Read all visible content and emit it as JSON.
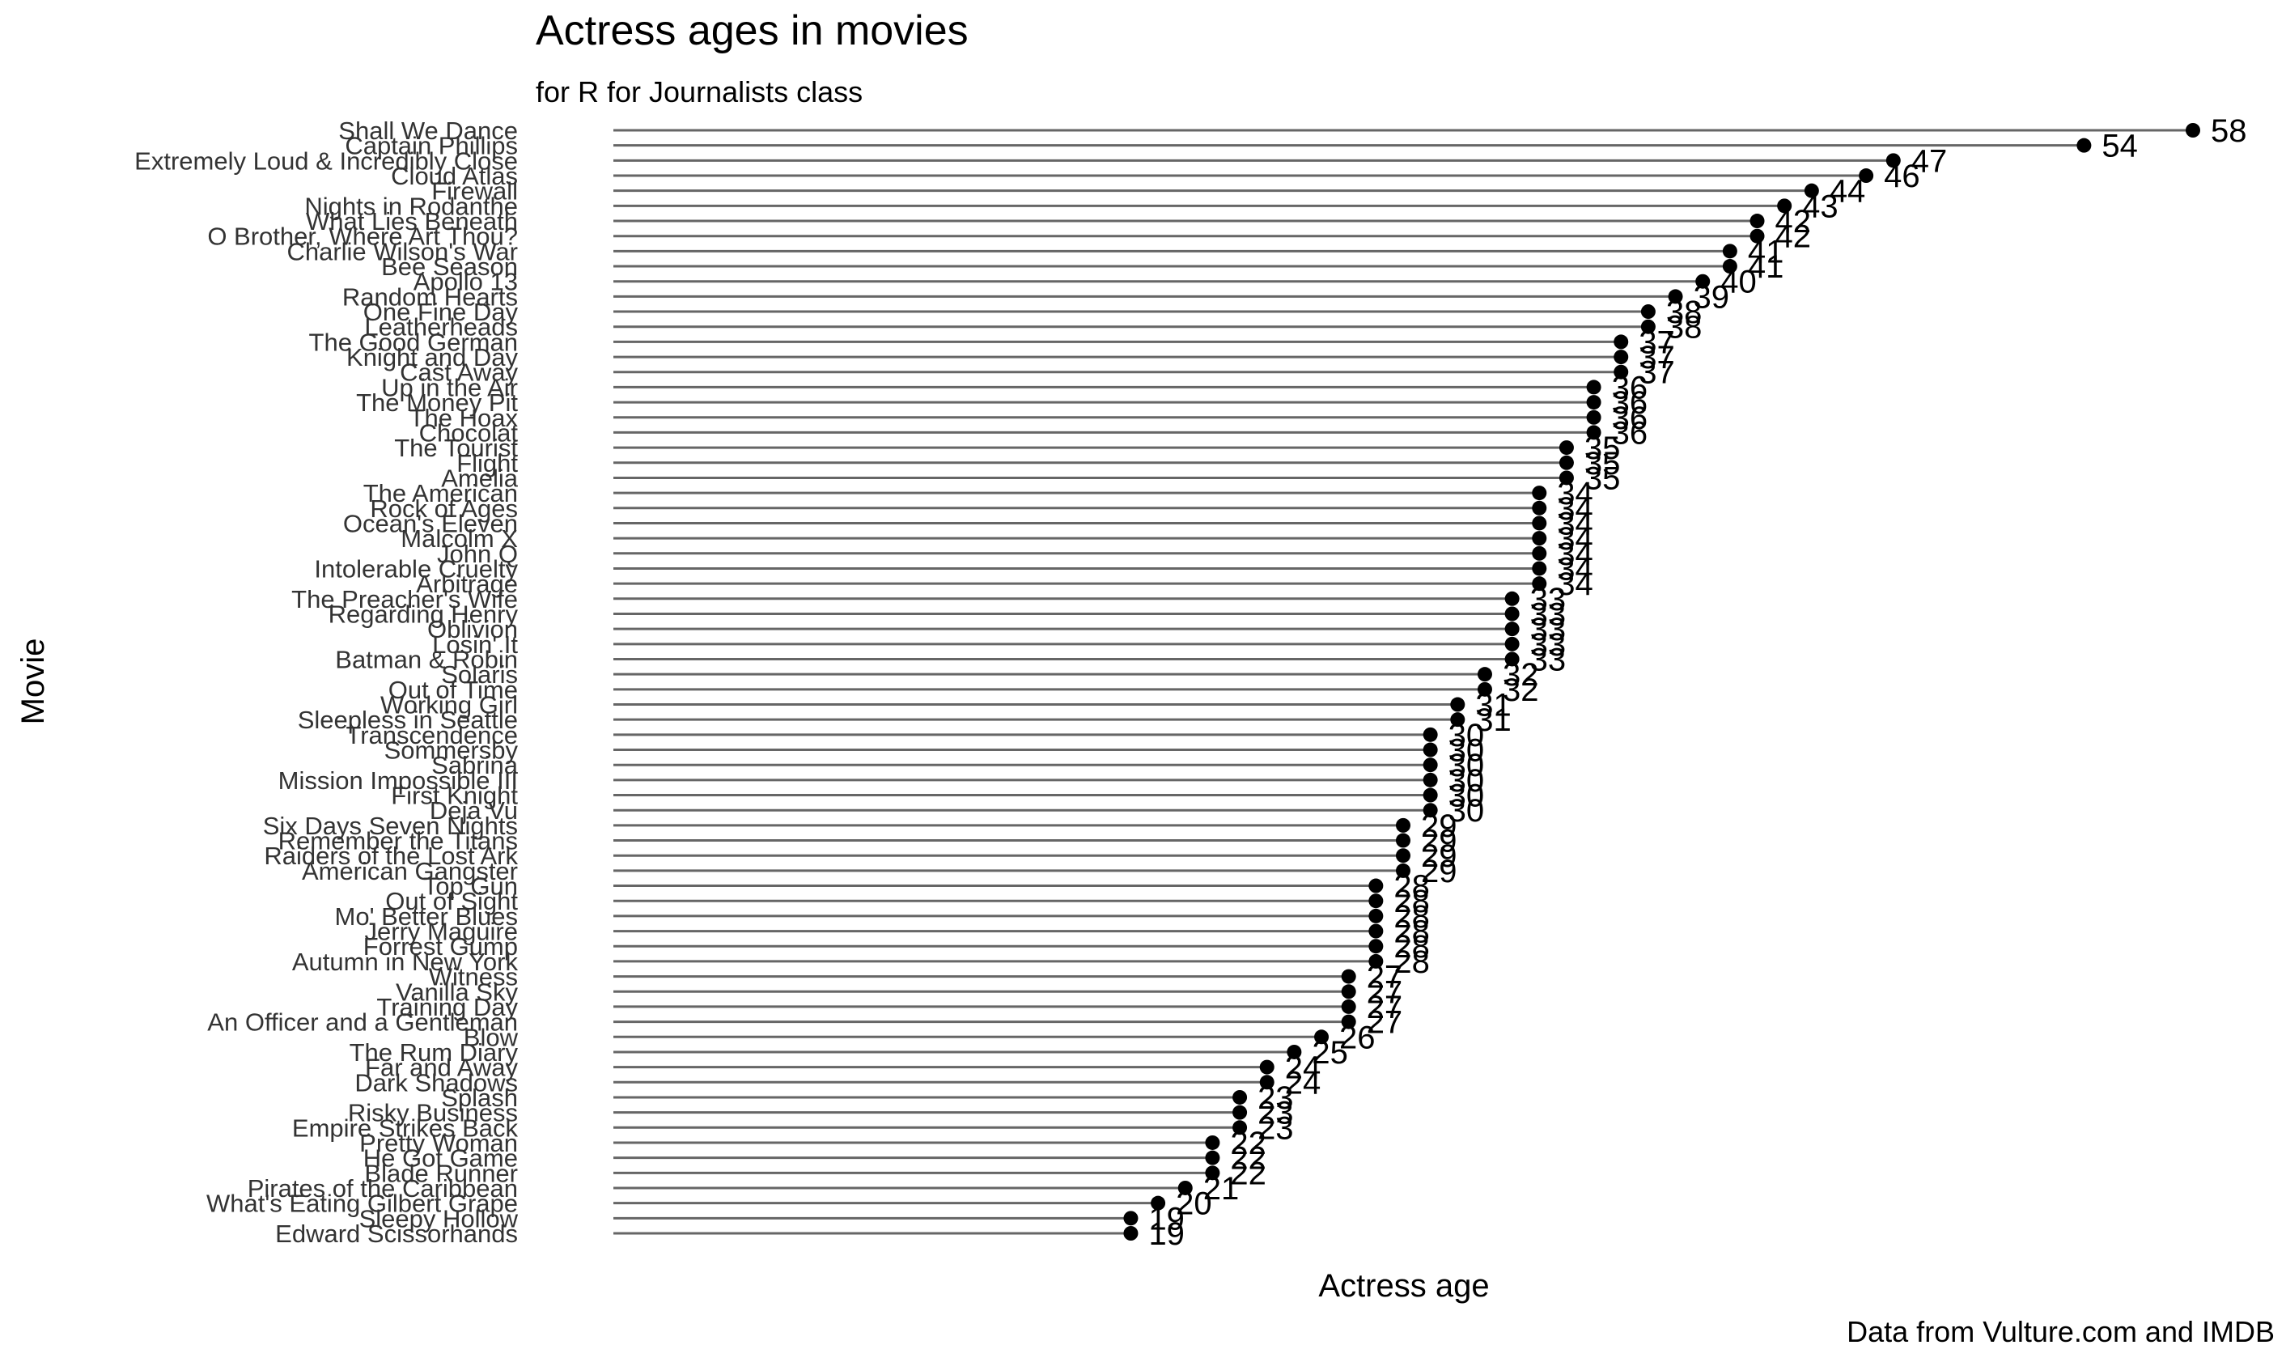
{
  "chart_data": {
    "type": "lollipop",
    "title": "Actress ages in movies",
    "subtitle": "for R for Journalists class",
    "caption": "Data from Vulture.com and IMDB",
    "xlabel": "Actress age",
    "ylabel": "Movie",
    "xlim": [
      0,
      58
    ],
    "grid": false,
    "legend": "none",
    "colors": {
      "stick": "#666666",
      "point": "#000000",
      "text": "#000000",
      "category_text": "#333333"
    },
    "categories": [
      "Shall We Dance",
      "Captain Phillips",
      "Extremely Loud & Incredibly Close",
      "Cloud Atlas",
      "Firewall",
      "Nights in Rodanthe",
      "What Lies Beneath",
      "O Brother, Where Art Thou?",
      "Charlie Wilson's War",
      "Bee Season",
      "Apollo 13",
      "Random Hearts",
      "One Fine Day",
      "Leatherheads",
      "The Good German",
      "Knight and Day",
      "Cast Away",
      "Up in the Air",
      "The Money Pit",
      "The Hoax",
      "Chocolat",
      "The Tourist",
      "Flight",
      "Amelia",
      "The American",
      "Rock of Ages",
      "Ocean's Eleven",
      "Malcolm X",
      "John Q",
      "Intolerable Cruelty",
      "Arbitrage",
      "The Preacher's Wife",
      "Regarding Henry",
      "Oblivion",
      "Losin' It",
      "Batman & Robin",
      "Solaris",
      "Out of Time",
      "Working Girl",
      "Sleepless in Seattle",
      "Transcendence",
      "Sommersby",
      "Sabrina",
      "Mission Impossible III",
      "First Knight",
      "Deja Vu",
      "Six Days Seven Nights",
      "Remember the Titans",
      "Raiders of the Lost Ark",
      "American Gangster",
      "Top Gun",
      "Out of Sight",
      "Mo' Better Blues",
      "Jerry Maguire",
      "Forrest Gump",
      "Autumn in New York",
      "Witness",
      "Vanilla Sky",
      "Training Day",
      "An Officer and a Gentleman",
      "Blow",
      "The Rum Diary",
      "Far and Away",
      "Dark Shadows",
      "Splash",
      "Risky Business",
      "Empire Strikes Back",
      "Pretty Woman",
      "He Got Game",
      "Blade Runner",
      "Pirates of the Caribbean",
      "What's Eating Gilbert Grape",
      "Sleepy Hollow",
      "Edward Scissorhands"
    ],
    "values": [
      58,
      54,
      47,
      46,
      44,
      43,
      42,
      42,
      41,
      41,
      40,
      39,
      38,
      38,
      37,
      37,
      37,
      36,
      36,
      36,
      36,
      35,
      35,
      35,
      34,
      34,
      34,
      34,
      34,
      34,
      34,
      33,
      33,
      33,
      33,
      33,
      32,
      32,
      31,
      31,
      30,
      30,
      30,
      30,
      30,
      30,
      29,
      29,
      29,
      29,
      28,
      28,
      28,
      28,
      28,
      28,
      27,
      27,
      27,
      27,
      26,
      25,
      24,
      24,
      23,
      23,
      23,
      22,
      22,
      22,
      21,
      20,
      19,
      19
    ]
  }
}
